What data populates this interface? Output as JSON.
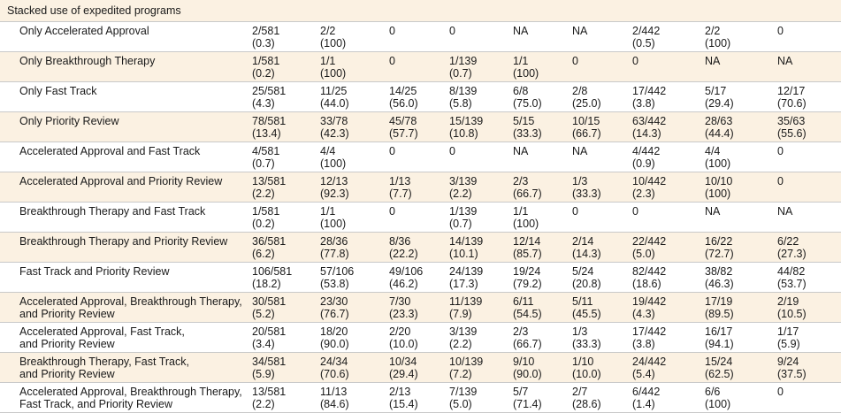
{
  "section_title": "Stacked use of expedited programs",
  "rows": [
    {
      "label": [
        "Only Accelerated Approval"
      ],
      "cells": [
        [
          "2/581",
          "(0.3)"
        ],
        [
          "2/2",
          "(100)"
        ],
        [
          "0"
        ],
        [
          "0"
        ],
        [
          "NA"
        ],
        [
          "NA"
        ],
        [
          "2/442",
          "(0.5)"
        ],
        [
          "2/2",
          "(100)"
        ],
        [
          "0"
        ]
      ]
    },
    {
      "label": [
        "Only Breakthrough Therapy"
      ],
      "cells": [
        [
          "1/581",
          "(0.2)"
        ],
        [
          "1/1",
          "(100)"
        ],
        [
          "0"
        ],
        [
          "1/139",
          "(0.7)"
        ],
        [
          "1/1",
          "(100)"
        ],
        [
          "0"
        ],
        [
          "0"
        ],
        [
          "NA"
        ],
        [
          "NA"
        ]
      ]
    },
    {
      "label": [
        "Only Fast Track"
      ],
      "cells": [
        [
          "25/581",
          "(4.3)"
        ],
        [
          "11/25",
          "(44.0)"
        ],
        [
          "14/25",
          "(56.0)"
        ],
        [
          "8/139",
          "(5.8)"
        ],
        [
          "6/8",
          "(75.0)"
        ],
        [
          "2/8",
          "(25.0)"
        ],
        [
          "17/442",
          "(3.8)"
        ],
        [
          "5/17",
          "(29.4)"
        ],
        [
          "12/17",
          "(70.6)"
        ]
      ]
    },
    {
      "label": [
        "Only Priority Review"
      ],
      "cells": [
        [
          "78/581",
          "(13.4)"
        ],
        [
          "33/78",
          "(42.3)"
        ],
        [
          "45/78",
          "(57.7)"
        ],
        [
          "15/139",
          "(10.8)"
        ],
        [
          "5/15",
          "(33.3)"
        ],
        [
          "10/15",
          "(66.7)"
        ],
        [
          "63/442",
          "(14.3)"
        ],
        [
          "28/63",
          "(44.4)"
        ],
        [
          "35/63",
          "(55.6)"
        ]
      ]
    },
    {
      "label": [
        "Accelerated Approval and Fast Track"
      ],
      "cells": [
        [
          "4/581",
          "(0.7)"
        ],
        [
          "4/4",
          "(100)"
        ],
        [
          "0"
        ],
        [
          "0"
        ],
        [
          "NA"
        ],
        [
          "NA"
        ],
        [
          "4/442",
          "(0.9)"
        ],
        [
          "4/4",
          "(100)"
        ],
        [
          "0"
        ]
      ]
    },
    {
      "label": [
        "Accelerated Approval and Priority Review"
      ],
      "cells": [
        [
          "13/581",
          "(2.2)"
        ],
        [
          "12/13",
          "(92.3)"
        ],
        [
          "1/13",
          "(7.7)"
        ],
        [
          "3/139",
          "(2.2)"
        ],
        [
          "2/3",
          "(66.7)"
        ],
        [
          "1/3",
          "(33.3)"
        ],
        [
          "10/442",
          "(2.3)"
        ],
        [
          "10/10",
          "(100)"
        ],
        [
          "0"
        ]
      ]
    },
    {
      "label": [
        "Breakthrough Therapy and Fast Track"
      ],
      "cells": [
        [
          "1/581",
          "(0.2)"
        ],
        [
          "1/1",
          "(100)"
        ],
        [
          "0"
        ],
        [
          "1/139",
          "(0.7)"
        ],
        [
          "1/1",
          "(100)"
        ],
        [
          "0"
        ],
        [
          "0"
        ],
        [
          "NA"
        ],
        [
          "NA"
        ]
      ]
    },
    {
      "label": [
        "Breakthrough Therapy and Priority Review"
      ],
      "cells": [
        [
          "36/581",
          "(6.2)"
        ],
        [
          "28/36",
          "(77.8)"
        ],
        [
          "8/36",
          "(22.2)"
        ],
        [
          "14/139",
          "(10.1)"
        ],
        [
          "12/14",
          "(85.7)"
        ],
        [
          "2/14",
          "(14.3)"
        ],
        [
          "22/442",
          "(5.0)"
        ],
        [
          "16/22",
          "(72.7)"
        ],
        [
          "6/22",
          "(27.3)"
        ]
      ]
    },
    {
      "label": [
        "Fast Track and Priority Review"
      ],
      "cells": [
        [
          "106/581",
          "(18.2)"
        ],
        [
          "57/106",
          "(53.8)"
        ],
        [
          "49/106",
          "(46.2)"
        ],
        [
          "24/139",
          "(17.3)"
        ],
        [
          "19/24",
          "(79.2)"
        ],
        [
          "5/24",
          "(20.8)"
        ],
        [
          "82/442",
          "(18.6)"
        ],
        [
          "38/82",
          "(46.3)"
        ],
        [
          "44/82",
          "(53.7)"
        ]
      ]
    },
    {
      "label": [
        "Accelerated Approval, Breakthrough Therapy,",
        "and Priority Review"
      ],
      "cells": [
        [
          "30/581",
          "(5.2)"
        ],
        [
          "23/30",
          "(76.7)"
        ],
        [
          "7/30",
          "(23.3)"
        ],
        [
          "11/139",
          "(7.9)"
        ],
        [
          "6/11",
          "(54.5)"
        ],
        [
          "5/11",
          "(45.5)"
        ],
        [
          "19/442",
          "(4.3)"
        ],
        [
          "17/19",
          "(89.5)"
        ],
        [
          "2/19",
          "(10.5)"
        ]
      ]
    },
    {
      "label": [
        "Accelerated Approval, Fast Track,",
        "and Priority Review"
      ],
      "cells": [
        [
          "20/581",
          "(3.4)"
        ],
        [
          "18/20",
          "(90.0)"
        ],
        [
          "2/20",
          "(10.0)"
        ],
        [
          "3/139",
          "(2.2)"
        ],
        [
          "2/3",
          "(66.7)"
        ],
        [
          "1/3",
          "(33.3)"
        ],
        [
          "17/442",
          "(3.8)"
        ],
        [
          "16/17",
          "(94.1)"
        ],
        [
          "1/17",
          "(5.9)"
        ]
      ]
    },
    {
      "label": [
        "Breakthrough Therapy, Fast Track,",
        "and Priority Review"
      ],
      "cells": [
        [
          "34/581",
          "(5.9)"
        ],
        [
          "24/34",
          "(70.6)"
        ],
        [
          "10/34",
          "(29.4)"
        ],
        [
          "10/139",
          "(7.2)"
        ],
        [
          "9/10",
          "(90.0)"
        ],
        [
          "1/10",
          "(10.0)"
        ],
        [
          "24/442",
          "(5.4)"
        ],
        [
          "15/24",
          "(62.5)"
        ],
        [
          "9/24",
          "(37.5)"
        ]
      ]
    },
    {
      "label": [
        "Accelerated Approval, Breakthrough Therapy,",
        "Fast Track, and Priority Review"
      ],
      "cells": [
        [
          "13/581",
          "(2.2)"
        ],
        [
          "11/13",
          "(84.6)"
        ],
        [
          "2/13",
          "(15.4)"
        ],
        [
          "7/139",
          "(5.0)"
        ],
        [
          "5/7",
          "(71.4)"
        ],
        [
          "2/7",
          "(28.6)"
        ],
        [
          "6/442",
          "(1.4)"
        ],
        [
          "6/6",
          "(100)"
        ],
        [
          "0"
        ]
      ]
    }
  ]
}
